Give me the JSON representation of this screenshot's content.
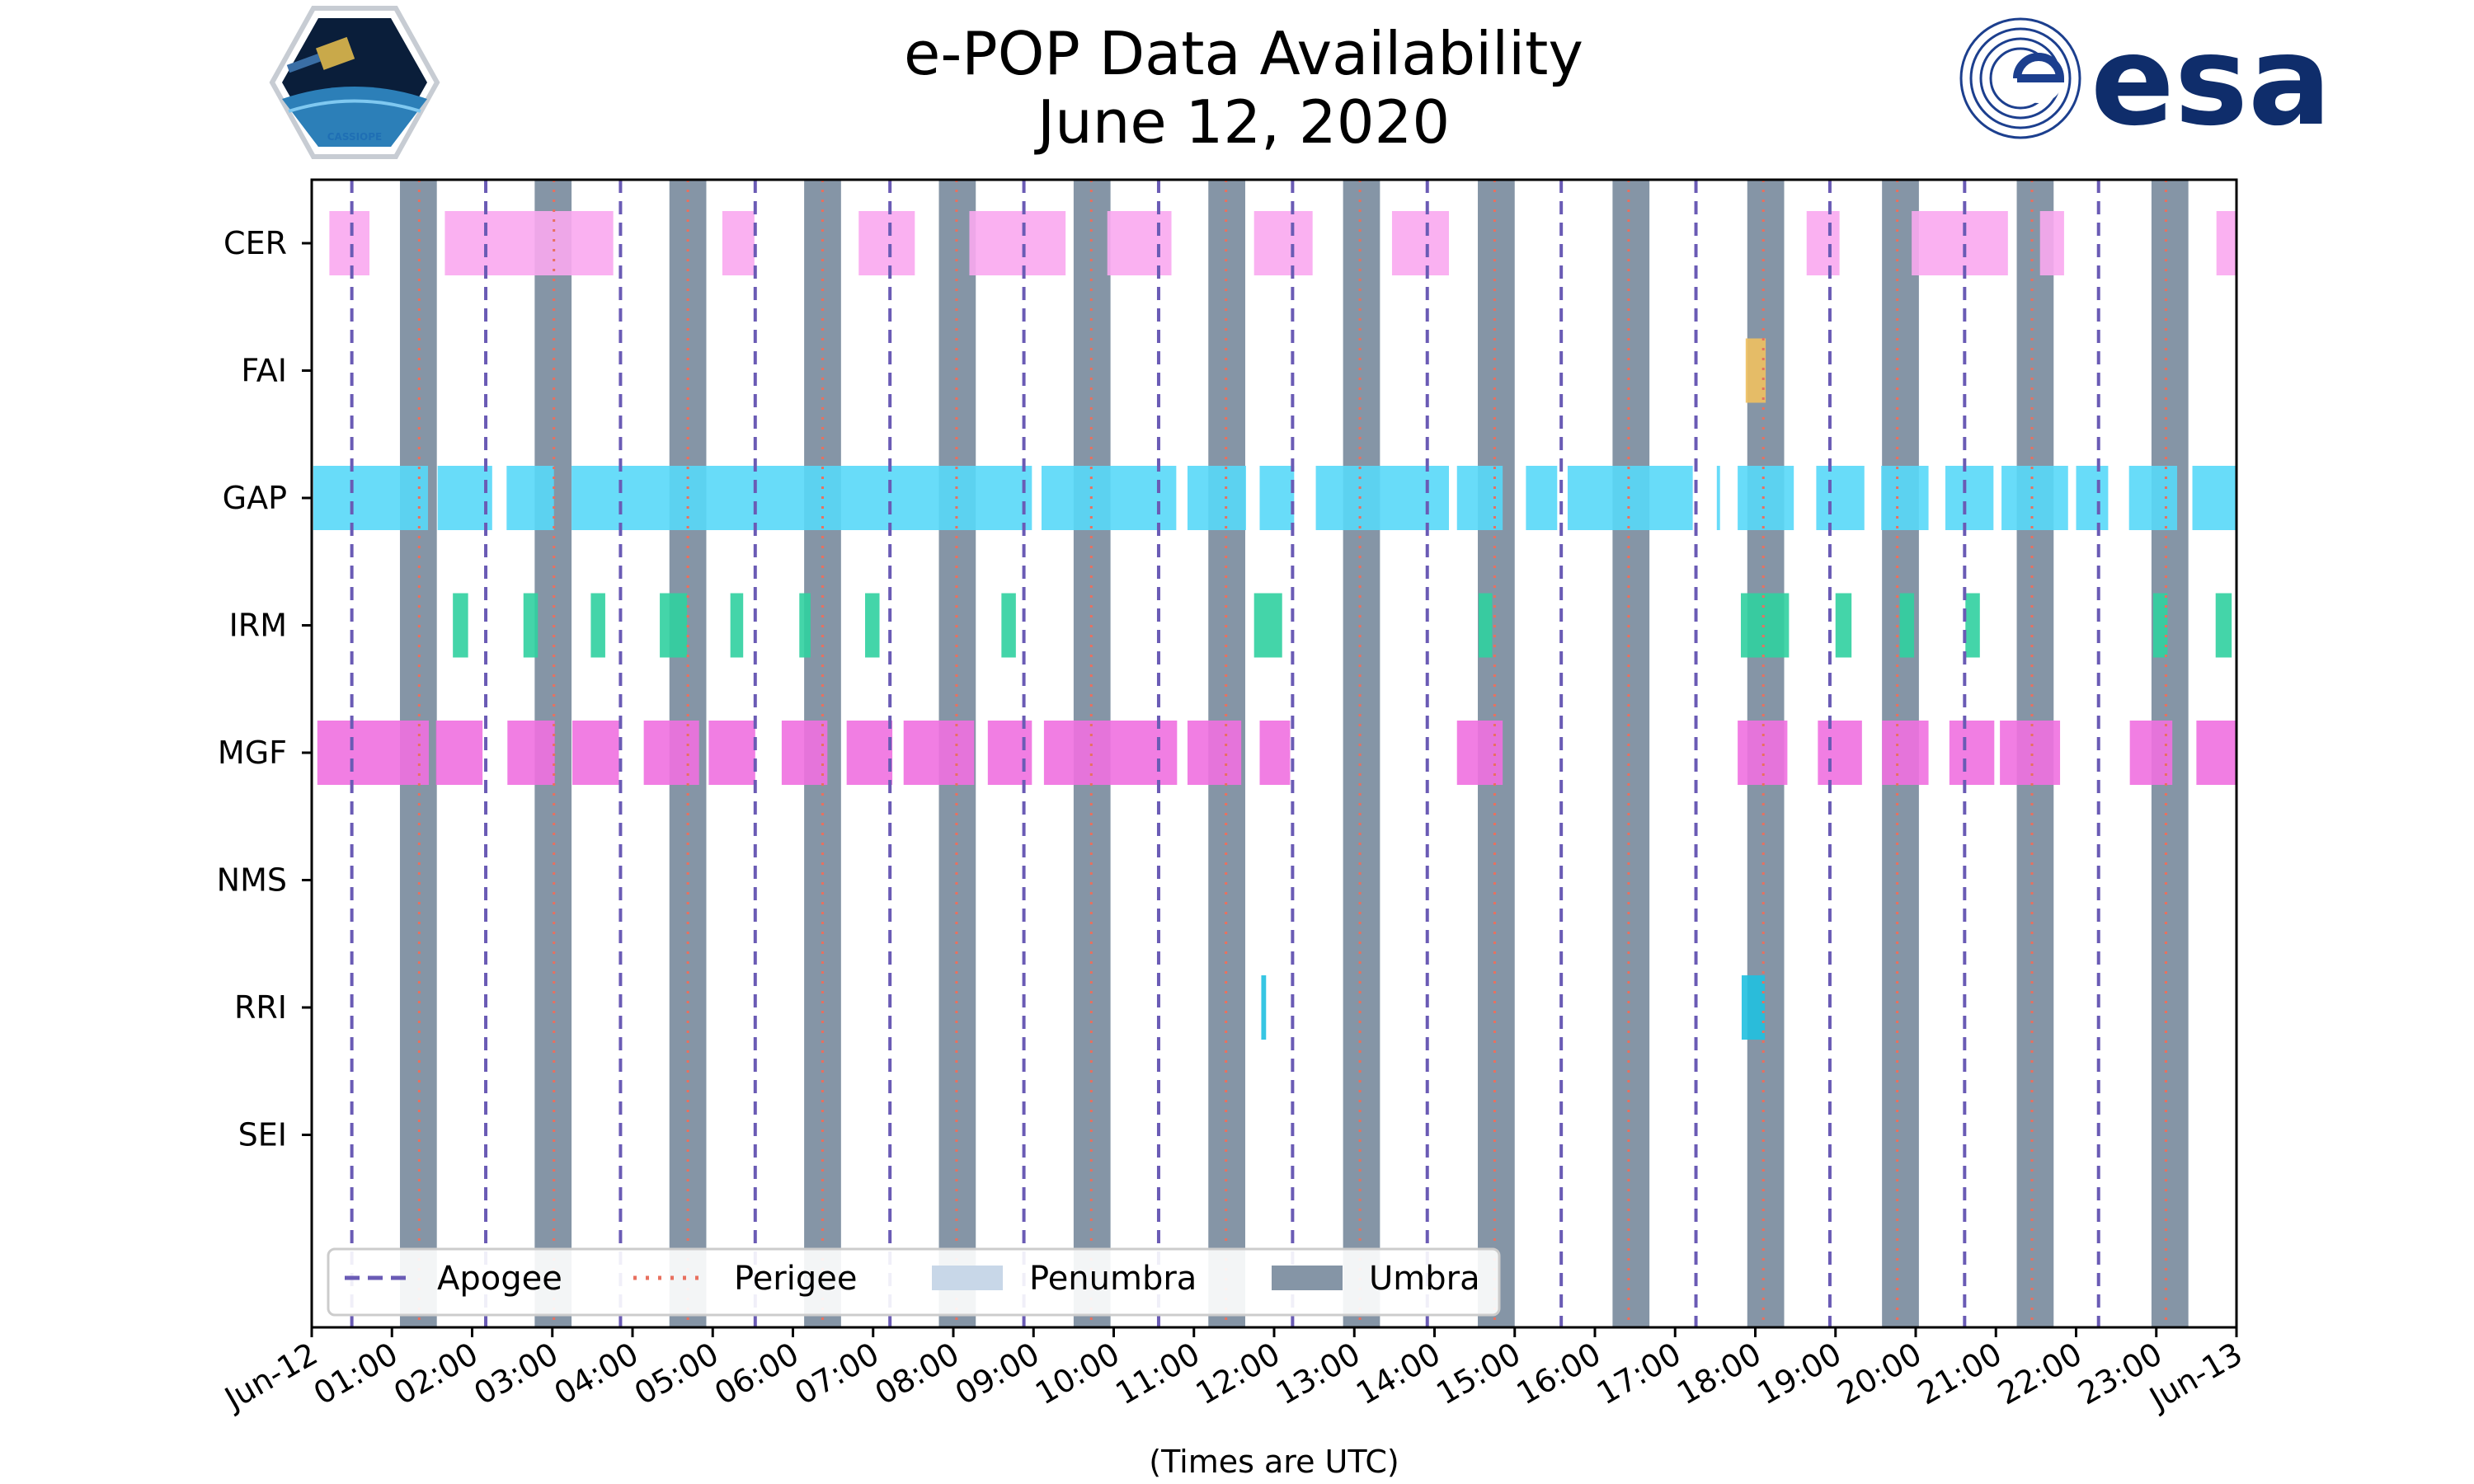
{
  "logos": {
    "left_badge_text": "CASSIOPE",
    "right_wordmark": "esa",
    "esa_color": "#0f2d6b",
    "badge_color": "#1f6fb4"
  },
  "chart_data": {
    "type": "timeline",
    "title_lines": [
      "e-POP Data Availability",
      "June 12, 2020"
    ],
    "xlabel": "(Times are UTC)",
    "xlim": [
      0,
      24
    ],
    "x_unit": "hours UTC",
    "x_ticks": [
      {
        "t": 0,
        "label": "Jun-12"
      },
      {
        "t": 1,
        "label": "01:00"
      },
      {
        "t": 2,
        "label": "02:00"
      },
      {
        "t": 3,
        "label": "03:00"
      },
      {
        "t": 4,
        "label": "04:00"
      },
      {
        "t": 5,
        "label": "05:00"
      },
      {
        "t": 6,
        "label": "06:00"
      },
      {
        "t": 7,
        "label": "07:00"
      },
      {
        "t": 8,
        "label": "08:00"
      },
      {
        "t": 9,
        "label": "09:00"
      },
      {
        "t": 10,
        "label": "10:00"
      },
      {
        "t": 11,
        "label": "11:00"
      },
      {
        "t": 12,
        "label": "12:00"
      },
      {
        "t": 13,
        "label": "13:00"
      },
      {
        "t": 14,
        "label": "14:00"
      },
      {
        "t": 15,
        "label": "15:00"
      },
      {
        "t": 16,
        "label": "16:00"
      },
      {
        "t": 17,
        "label": "17:00"
      },
      {
        "t": 18,
        "label": "18:00"
      },
      {
        "t": 19,
        "label": "19:00"
      },
      {
        "t": 20,
        "label": "20:00"
      },
      {
        "t": 21,
        "label": "21:00"
      },
      {
        "t": 22,
        "label": "22:00"
      },
      {
        "t": 23,
        "label": "23:00"
      },
      {
        "t": 24,
        "label": "Jun-13"
      }
    ],
    "categories": [
      "CER",
      "FAI",
      "GAP",
      "IRM",
      "MGF",
      "NMS",
      "RRI",
      "SEI"
    ],
    "colors": {
      "apogee": "#6a5bb5",
      "perigee": "#e8705f",
      "penumbra": "#c8d7e8",
      "umbra": "#8595a6",
      "CER": "#f9a8ef",
      "FAI": "#f0c060",
      "GAP": "#58d8f8",
      "IRM": "#30d0a0",
      "MGF": "#f070e0",
      "NMS": "#a0a0a0",
      "RRI": "#20c0e0",
      "SEI": "#a0a0a0"
    },
    "legend": {
      "position": "lower-left",
      "items": [
        {
          "label": "Apogee",
          "kind": "apogee"
        },
        {
          "label": "Perigee",
          "kind": "perigee"
        },
        {
          "label": "Penumbra",
          "kind": "penumbra"
        },
        {
          "label": "Umbra",
          "kind": "umbra"
        }
      ]
    },
    "apogee_times": [
      0.5,
      2.17,
      3.85,
      5.53,
      7.21,
      8.88,
      10.56,
      12.23,
      13.91,
      15.58,
      17.26,
      18.93,
      20.61,
      22.28
    ],
    "perigee_times": [
      1.34,
      3.02,
      4.69,
      6.37,
      8.04,
      9.72,
      11.4,
      13.07,
      14.75,
      16.42,
      18.1,
      19.77,
      21.45,
      23.12
    ],
    "umbra_intervals": [
      [
        1.1,
        1.56
      ],
      [
        2.78,
        3.24
      ],
      [
        4.46,
        4.92
      ],
      [
        6.14,
        6.6
      ],
      [
        7.82,
        8.28
      ],
      [
        9.5,
        9.96
      ],
      [
        11.18,
        11.64
      ],
      [
        12.86,
        13.32
      ],
      [
        14.54,
        15.0
      ],
      [
        16.22,
        16.68
      ],
      [
        17.9,
        18.36
      ],
      [
        19.58,
        20.04
      ],
      [
        21.26,
        21.72
      ],
      [
        22.94,
        23.4
      ]
    ],
    "penumbra_intervals": [],
    "series": [
      {
        "name": "CER",
        "intervals": [
          [
            0.22,
            0.72
          ],
          [
            1.66,
            3.76
          ],
          [
            5.12,
            5.52
          ],
          [
            6.82,
            7.52
          ],
          [
            8.2,
            9.4
          ],
          [
            9.92,
            10.72
          ],
          [
            11.75,
            12.48
          ],
          [
            13.47,
            14.18
          ],
          [
            18.64,
            19.05
          ],
          [
            19.95,
            21.15
          ],
          [
            21.55,
            21.85
          ],
          [
            23.75,
            24.0
          ]
        ]
      },
      {
        "name": "FAI",
        "intervals": [
          [
            17.88,
            18.13
          ]
        ]
      },
      {
        "name": "GAP",
        "intervals": [
          [
            0.02,
            1.45
          ],
          [
            1.57,
            2.25
          ],
          [
            2.43,
            3.02
          ],
          [
            3.24,
            8.98
          ],
          [
            9.1,
            10.78
          ],
          [
            10.92,
            11.65
          ],
          [
            11.82,
            12.25
          ],
          [
            12.52,
            14.18
          ],
          [
            14.28,
            14.85
          ],
          [
            15.14,
            15.53
          ],
          [
            15.66,
            17.22
          ],
          [
            17.52,
            17.56
          ],
          [
            17.78,
            18.48
          ],
          [
            18.76,
            19.36
          ],
          [
            19.57,
            20.16
          ],
          [
            20.37,
            20.97
          ],
          [
            21.07,
            21.9
          ],
          [
            22.0,
            22.4
          ],
          [
            22.66,
            23.26
          ],
          [
            23.45,
            24.0
          ]
        ]
      },
      {
        "name": "IRM",
        "intervals": [
          [
            1.76,
            1.95
          ],
          [
            2.64,
            2.82
          ],
          [
            3.48,
            3.66
          ],
          [
            4.34,
            4.68
          ],
          [
            5.22,
            5.38
          ],
          [
            6.08,
            6.22
          ],
          [
            6.9,
            7.08
          ],
          [
            8.6,
            8.78
          ],
          [
            11.75,
            12.1
          ],
          [
            14.55,
            14.72
          ],
          [
            17.82,
            18.42
          ],
          [
            19.0,
            19.2
          ],
          [
            19.8,
            19.98
          ],
          [
            20.62,
            20.8
          ],
          [
            22.96,
            23.14
          ],
          [
            23.74,
            23.94
          ]
        ]
      },
      {
        "name": "MGF",
        "intervals": [
          [
            0.07,
            1.46
          ],
          [
            1.55,
            2.13
          ],
          [
            2.44,
            3.03
          ],
          [
            3.25,
            3.83
          ],
          [
            4.14,
            4.83
          ],
          [
            4.95,
            5.53
          ],
          [
            5.86,
            6.43
          ],
          [
            6.67,
            7.24
          ],
          [
            7.38,
            8.26
          ],
          [
            8.43,
            8.98
          ],
          [
            9.13,
            10.79
          ],
          [
            10.92,
            11.59
          ],
          [
            11.82,
            12.2
          ],
          [
            14.28,
            14.85
          ],
          [
            17.78,
            18.4
          ],
          [
            18.78,
            19.33
          ],
          [
            19.58,
            20.16
          ],
          [
            20.42,
            20.98
          ],
          [
            21.05,
            21.8
          ],
          [
            22.67,
            23.2
          ],
          [
            23.5,
            24.0
          ]
        ]
      },
      {
        "name": "NMS",
        "intervals": []
      },
      {
        "name": "RRI",
        "intervals": [
          [
            11.84,
            11.9
          ],
          [
            17.83,
            18.12
          ]
        ]
      },
      {
        "name": "SEI",
        "intervals": []
      }
    ]
  }
}
